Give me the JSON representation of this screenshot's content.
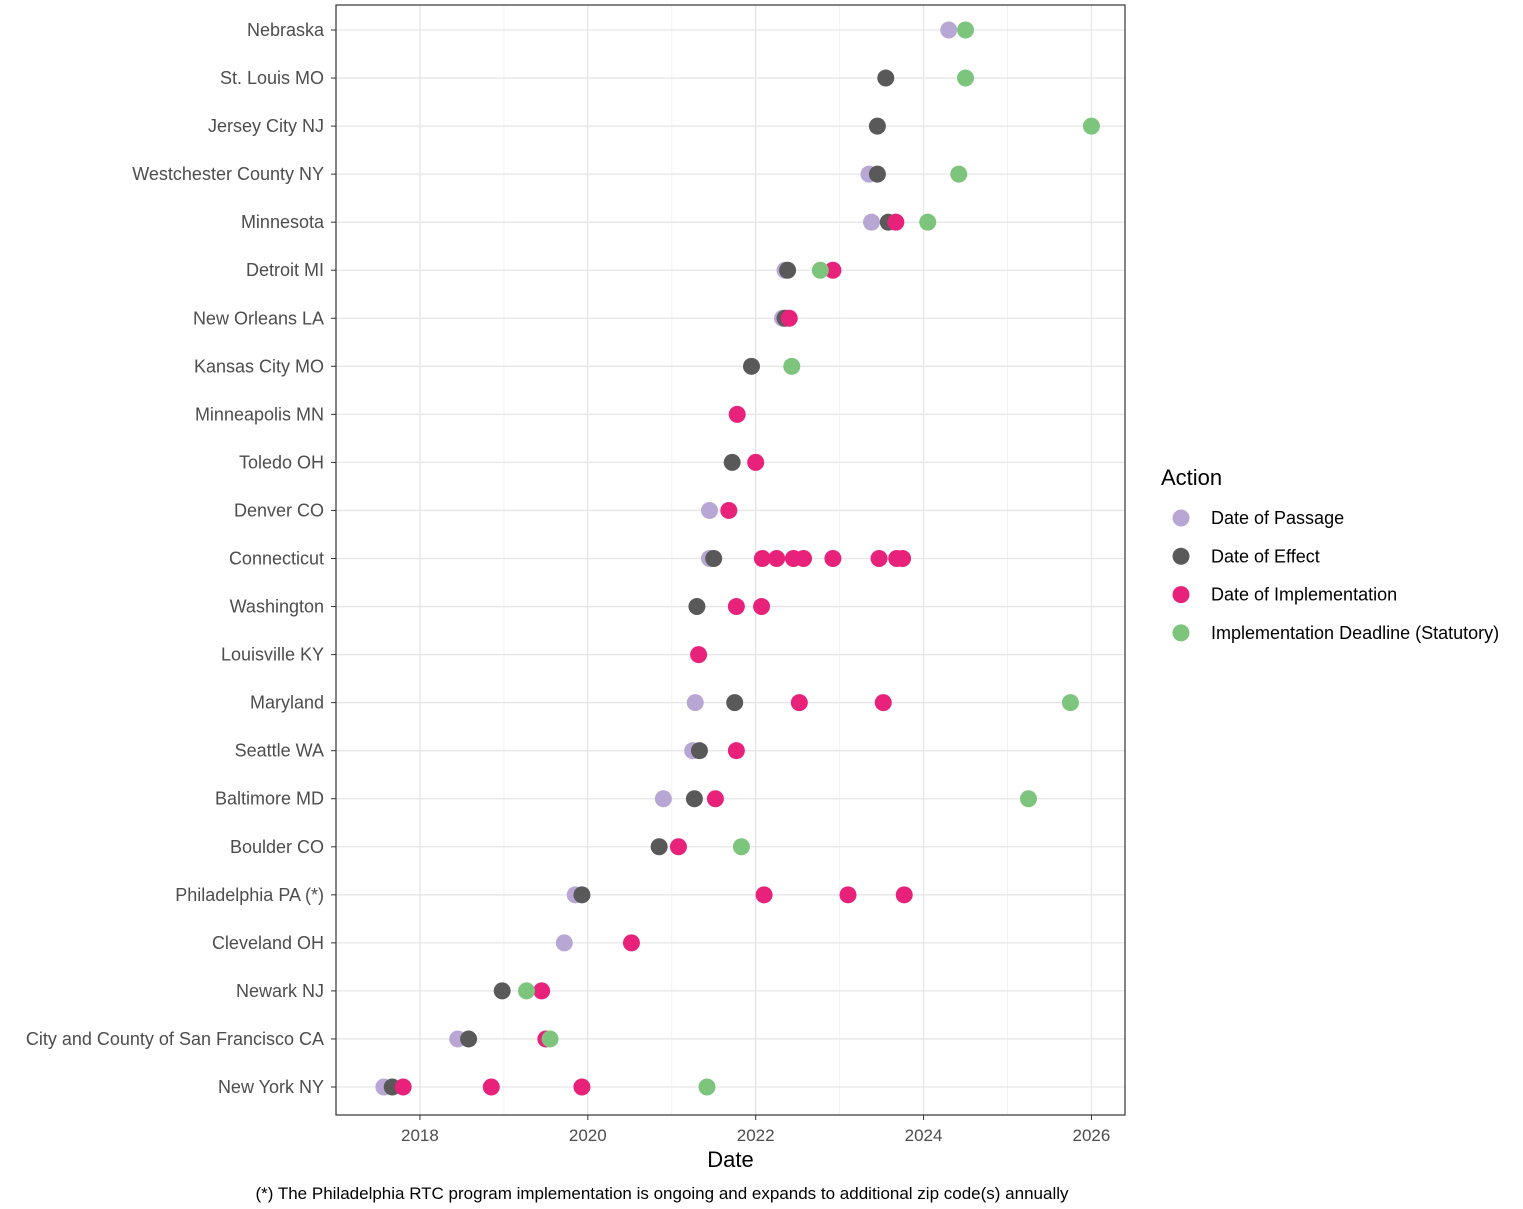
{
  "chart_data": {
    "type": "scatter",
    "xlabel": "Date",
    "xlim": [
      2017.0,
      2026.4
    ],
    "x_ticks": [
      2018,
      2020,
      2022,
      2024,
      2026
    ],
    "grid": true,
    "legend_title": "Action",
    "legend_position": "right",
    "caption": "(*) The Philadelphia RTC program implementation is ongoing and expands to additional zip code(s) annually",
    "categories": [
      "Nebraska",
      "St. Louis MO",
      "Jersey City NJ",
      "Westchester County NY",
      "Minnesota",
      "Detroit MI",
      "New Orleans LA",
      "Kansas City MO",
      "Minneapolis MN",
      "Toledo OH",
      "Denver CO",
      "Connecticut",
      "Washington",
      "Louisville KY",
      "Maryland",
      "Seattle WA",
      "Baltimore MD",
      "Boulder CO",
      "Philadelphia PA (*)",
      "Cleveland OH",
      "Newark NJ",
      "City and County of San Francisco CA",
      "New York NY"
    ],
    "series": [
      {
        "name": "Date of Passage",
        "color": "#b8a6d4",
        "points": [
          [
            "Nebraska",
            2024.3
          ],
          [
            "Westchester County NY",
            2023.35
          ],
          [
            "Minnesota",
            2023.38
          ],
          [
            "Detroit MI",
            2022.35
          ],
          [
            "New Orleans LA",
            2022.32
          ],
          [
            "Denver CO",
            2021.45
          ],
          [
            "Connecticut",
            2021.45
          ],
          [
            "Maryland",
            2021.28
          ],
          [
            "Seattle WA",
            2021.25
          ],
          [
            "Baltimore MD",
            2020.9
          ],
          [
            "Philadelphia PA (*)",
            2019.85
          ],
          [
            "Cleveland OH",
            2019.72
          ],
          [
            "City and County of San Francisco CA",
            2018.45
          ],
          [
            "New York NY",
            2017.57
          ]
        ]
      },
      {
        "name": "Date of Effect",
        "color": "#595959",
        "points": [
          [
            "St. Louis MO",
            2023.55
          ],
          [
            "Jersey City NJ",
            2023.45
          ],
          [
            "Westchester County NY",
            2023.45
          ],
          [
            "Minnesota",
            2023.58
          ],
          [
            "Detroit MI",
            2022.38
          ],
          [
            "New Orleans LA",
            2022.35
          ],
          [
            "Kansas City MO",
            2021.95
          ],
          [
            "Toledo OH",
            2021.72
          ],
          [
            "Connecticut",
            2021.5
          ],
          [
            "Washington",
            2021.3
          ],
          [
            "Maryland",
            2021.75
          ],
          [
            "Seattle WA",
            2021.33
          ],
          [
            "Baltimore MD",
            2021.27
          ],
          [
            "Boulder CO",
            2020.85
          ],
          [
            "Philadelphia PA (*)",
            2019.93
          ],
          [
            "Newark NJ",
            2018.98
          ],
          [
            "City and County of San Francisco CA",
            2018.58
          ],
          [
            "New York NY",
            2017.67
          ]
        ]
      },
      {
        "name": "Date of Implementation",
        "color": "#e8227a",
        "points": [
          [
            "Minnesota",
            2023.67
          ],
          [
            "Detroit MI",
            2022.92
          ],
          [
            "New Orleans LA",
            2022.4
          ],
          [
            "Minneapolis MN",
            2021.78
          ],
          [
            "Toledo OH",
            2022.0
          ],
          [
            "Denver CO",
            2021.68
          ],
          [
            "Connecticut",
            2022.08
          ],
          [
            "Connecticut",
            2022.25
          ],
          [
            "Connecticut",
            2022.45
          ],
          [
            "Connecticut",
            2022.57
          ],
          [
            "Connecticut",
            2022.92
          ],
          [
            "Connecticut",
            2023.47
          ],
          [
            "Connecticut",
            2023.68
          ],
          [
            "Connecticut",
            2023.75
          ],
          [
            "Washington",
            2021.77
          ],
          [
            "Washington",
            2022.07
          ],
          [
            "Louisville KY",
            2021.32
          ],
          [
            "Maryland",
            2022.52
          ],
          [
            "Maryland",
            2023.52
          ],
          [
            "Seattle WA",
            2021.77
          ],
          [
            "Baltimore MD",
            2021.52
          ],
          [
            "Boulder CO",
            2021.08
          ],
          [
            "Philadelphia PA (*)",
            2022.1
          ],
          [
            "Philadelphia PA (*)",
            2023.1
          ],
          [
            "Philadelphia PA (*)",
            2023.77
          ],
          [
            "Cleveland OH",
            2020.52
          ],
          [
            "Newark NJ",
            2019.45
          ],
          [
            "City and County of San Francisco CA",
            2019.5
          ],
          [
            "New York NY",
            2017.8
          ],
          [
            "New York NY",
            2018.85
          ],
          [
            "New York NY",
            2019.93
          ]
        ]
      },
      {
        "name": "Implementation Deadline (Statutory)",
        "color": "#7dc47d",
        "points": [
          [
            "Nebraska",
            2024.5
          ],
          [
            "St. Louis MO",
            2024.5
          ],
          [
            "Jersey City NJ",
            2026.0
          ],
          [
            "Westchester County NY",
            2024.42
          ],
          [
            "Minnesota",
            2024.05
          ],
          [
            "Detroit MI",
            2022.77
          ],
          [
            "Kansas City MO",
            2022.43
          ],
          [
            "Maryland",
            2025.75
          ],
          [
            "Baltimore MD",
            2025.25
          ],
          [
            "Boulder CO",
            2021.83
          ],
          [
            "Newark NJ",
            2019.27
          ],
          [
            "City and County of San Francisco CA",
            2019.55
          ],
          [
            "New York NY",
            2021.42
          ]
        ]
      }
    ]
  }
}
